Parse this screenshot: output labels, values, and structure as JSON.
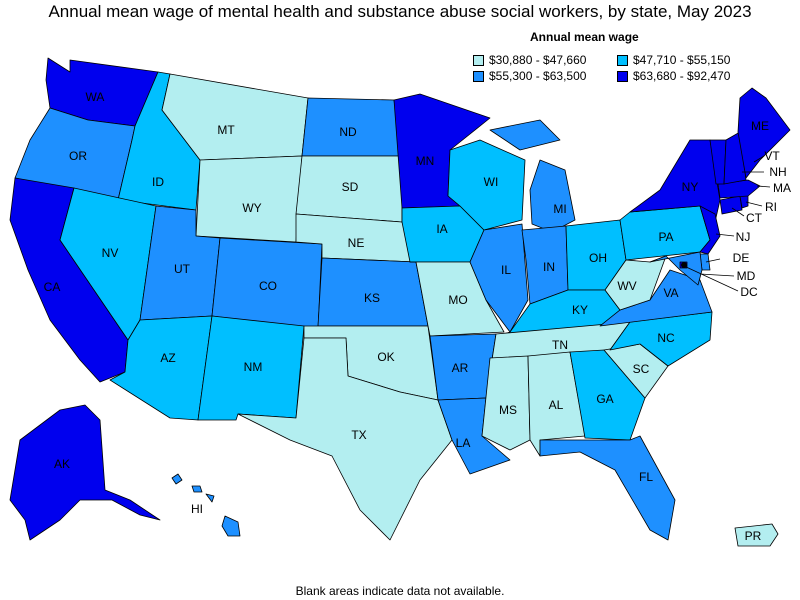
{
  "title": "Annual mean wage of mental health and substance abuse social workers, by state, May 2023",
  "legend": {
    "title": "Annual mean wage",
    "items": [
      {
        "label": "$30,880 - $47,660",
        "color": "#b3eef0"
      },
      {
        "label": "$55,300 - $63,500",
        "color": "#1e90ff"
      },
      {
        "label": "$47,710 - $55,150",
        "color": "#00bfff"
      },
      {
        "label": "$63,680 - $92,470",
        "color": "#0000ee"
      }
    ]
  },
  "footnote": "Blank areas indicate data not available.",
  "states": {
    "WA": {
      "label": "WA",
      "tier": 4
    },
    "OR": {
      "label": "OR",
      "tier": 2
    },
    "CA": {
      "label": "CA",
      "tier": 4
    },
    "ID": {
      "label": "ID",
      "tier": 3
    },
    "NV": {
      "label": "NV",
      "tier": 3
    },
    "MT": {
      "label": "MT",
      "tier": 1
    },
    "WY": {
      "label": "WY",
      "tier": 1
    },
    "UT": {
      "label": "UT",
      "tier": 2
    },
    "AZ": {
      "label": "AZ",
      "tier": 3
    },
    "CO": {
      "label": "CO",
      "tier": 2
    },
    "NM": {
      "label": "NM",
      "tier": 3
    },
    "ND": {
      "label": "ND",
      "tier": 2
    },
    "SD": {
      "label": "SD",
      "tier": 1
    },
    "NE": {
      "label": "NE",
      "tier": 1
    },
    "KS": {
      "label": "KS",
      "tier": 2
    },
    "OK": {
      "label": "OK",
      "tier": 1
    },
    "TX": {
      "label": "TX",
      "tier": 1
    },
    "MN": {
      "label": "MN",
      "tier": 4
    },
    "IA": {
      "label": "IA",
      "tier": 3
    },
    "MO": {
      "label": "MO",
      "tier": 1
    },
    "AR": {
      "label": "AR",
      "tier": 2
    },
    "LA": {
      "label": "LA",
      "tier": 2
    },
    "WI": {
      "label": "WI",
      "tier": 3
    },
    "IL": {
      "label": "IL",
      "tier": 2
    },
    "MI": {
      "label": "MI",
      "tier": 2
    },
    "IN": {
      "label": "IN",
      "tier": 2
    },
    "OH": {
      "label": "OH",
      "tier": 3
    },
    "KY": {
      "label": "KY",
      "tier": 3
    },
    "TN": {
      "label": "TN",
      "tier": 1
    },
    "MS": {
      "label": "MS",
      "tier": 1
    },
    "AL": {
      "label": "AL",
      "tier": 1
    },
    "GA": {
      "label": "GA",
      "tier": 3
    },
    "FL": {
      "label": "FL",
      "tier": 2
    },
    "SC": {
      "label": "SC",
      "tier": 1
    },
    "NC": {
      "label": "NC",
      "tier": 3
    },
    "VA": {
      "label": "VA",
      "tier": 2
    },
    "WV": {
      "label": "WV",
      "tier": 1
    },
    "PA": {
      "label": "PA",
      "tier": 3
    },
    "NY": {
      "label": "NY",
      "tier": 4
    },
    "NJ": {
      "label": "NJ",
      "tier": 4
    },
    "DE": {
      "label": "DE",
      "tier": 2
    },
    "MD": {
      "label": "MD",
      "tier": 2
    },
    "DC": {
      "label": "DC",
      "tier": 4
    },
    "CT": {
      "label": "CT",
      "tier": 4
    },
    "RI": {
      "label": "RI",
      "tier": 4
    },
    "MA": {
      "label": "MA",
      "tier": 4
    },
    "VT": {
      "label": "VT",
      "tier": 4
    },
    "NH": {
      "label": "NH",
      "tier": 4
    },
    "ME": {
      "label": "ME",
      "tier": 4
    },
    "AK": {
      "label": "AK",
      "tier": 4
    },
    "HI": {
      "label": "HI",
      "tier": 2
    },
    "PR": {
      "label": "PR",
      "tier": 1
    }
  }
}
